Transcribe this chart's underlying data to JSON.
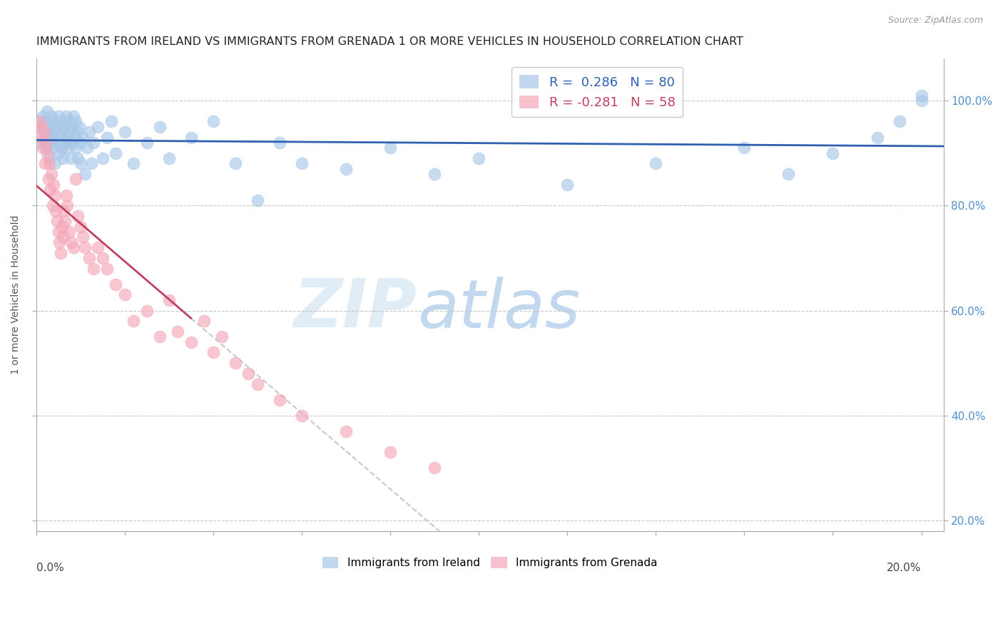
{
  "title": "IMMIGRANTS FROM IRELAND VS IMMIGRANTS FROM GRENADA 1 OR MORE VEHICLES IN HOUSEHOLD CORRELATION CHART",
  "source": "Source: ZipAtlas.com",
  "ylabel": "1 or more Vehicles in Household",
  "legend_blue": "R =  0.286   N = 80",
  "legend_pink": "R = -0.281   N = 58",
  "legend_label_blue": "Immigrants from Ireland",
  "legend_label_pink": "Immigrants from Grenada",
  "blue_color": "#a8c8e8",
  "pink_color": "#f4a8b8",
  "trend_blue": "#3060b0",
  "trend_pink": "#c04060",
  "trend_gray": "#c8c8c8",
  "right_axis_color": "#5090d0",
  "background": "#ffffff",
  "grid_color": "#c8c8c8",
  "blue_scatter_x": [
    0.1,
    0.12,
    0.15,
    0.18,
    0.2,
    0.22,
    0.25,
    0.28,
    0.3,
    0.3,
    0.32,
    0.35,
    0.35,
    0.38,
    0.4,
    0.4,
    0.42,
    0.45,
    0.48,
    0.5,
    0.5,
    0.52,
    0.55,
    0.58,
    0.6,
    0.6,
    0.62,
    0.65,
    0.68,
    0.7,
    0.7,
    0.72,
    0.75,
    0.78,
    0.8,
    0.82,
    0.85,
    0.88,
    0.9,
    0.9,
    0.92,
    0.95,
    0.98,
    1.0,
    1.0,
    1.05,
    1.1,
    1.15,
    1.2,
    1.25,
    1.3,
    1.4,
    1.5,
    1.6,
    1.7,
    1.8,
    2.0,
    2.2,
    2.5,
    2.8,
    3.0,
    3.5,
    4.0,
    4.5,
    5.0,
    5.5,
    6.0,
    7.0,
    8.0,
    9.0,
    10.0,
    12.0,
    14.0,
    16.0,
    17.0,
    18.0,
    19.0,
    19.5,
    20.0,
    20.0
  ],
  "blue_scatter_y": [
    95,
    92,
    97,
    93,
    96,
    91,
    98,
    94,
    89,
    95,
    92,
    97,
    93,
    96,
    91,
    94,
    88,
    95,
    92,
    97,
    90,
    93,
    96,
    91,
    94,
    89,
    95,
    92,
    97,
    93,
    96,
    91,
    94,
    89,
    95,
    92,
    97,
    93,
    96,
    91,
    94,
    89,
    95,
    88,
    92,
    93,
    86,
    91,
    94,
    88,
    92,
    95,
    89,
    93,
    96,
    90,
    94,
    88,
    92,
    95,
    89,
    93,
    96,
    88,
    81,
    92,
    88,
    87,
    91,
    86,
    89,
    84,
    88,
    91,
    86,
    90,
    93,
    96,
    100,
    101
  ],
  "pink_scatter_x": [
    0.08,
    0.1,
    0.12,
    0.15,
    0.18,
    0.2,
    0.22,
    0.25,
    0.28,
    0.3,
    0.32,
    0.35,
    0.38,
    0.4,
    0.42,
    0.45,
    0.48,
    0.5,
    0.52,
    0.55,
    0.58,
    0.6,
    0.62,
    0.65,
    0.68,
    0.7,
    0.75,
    0.8,
    0.85,
    0.9,
    0.95,
    1.0,
    1.05,
    1.1,
    1.2,
    1.3,
    1.4,
    1.5,
    1.6,
    1.8,
    2.0,
    2.2,
    2.5,
    2.8,
    3.0,
    3.2,
    3.5,
    3.8,
    4.0,
    4.2,
    4.5,
    4.8,
    5.0,
    5.5,
    6.0,
    7.0,
    8.0,
    9.0
  ],
  "pink_scatter_y": [
    96,
    93,
    95,
    91,
    94,
    88,
    92,
    90,
    85,
    88,
    83,
    86,
    80,
    84,
    82,
    79,
    77,
    75,
    73,
    71,
    76,
    74,
    79,
    77,
    82,
    80,
    75,
    73,
    72,
    85,
    78,
    76,
    74,
    72,
    70,
    68,
    72,
    70,
    68,
    65,
    63,
    58,
    60,
    55,
    62,
    56,
    54,
    58,
    52,
    55,
    50,
    48,
    46,
    43,
    40,
    37,
    33,
    30
  ],
  "xmin": 0.0,
  "xmax": 20.5,
  "ymin": 18,
  "ymax": 108,
  "ytick_vals": [
    20,
    40,
    60,
    80,
    100
  ],
  "ytick_labels": [
    "20.0%",
    "40.0%",
    "60.0%",
    "80.0%",
    "100.0%"
  ]
}
